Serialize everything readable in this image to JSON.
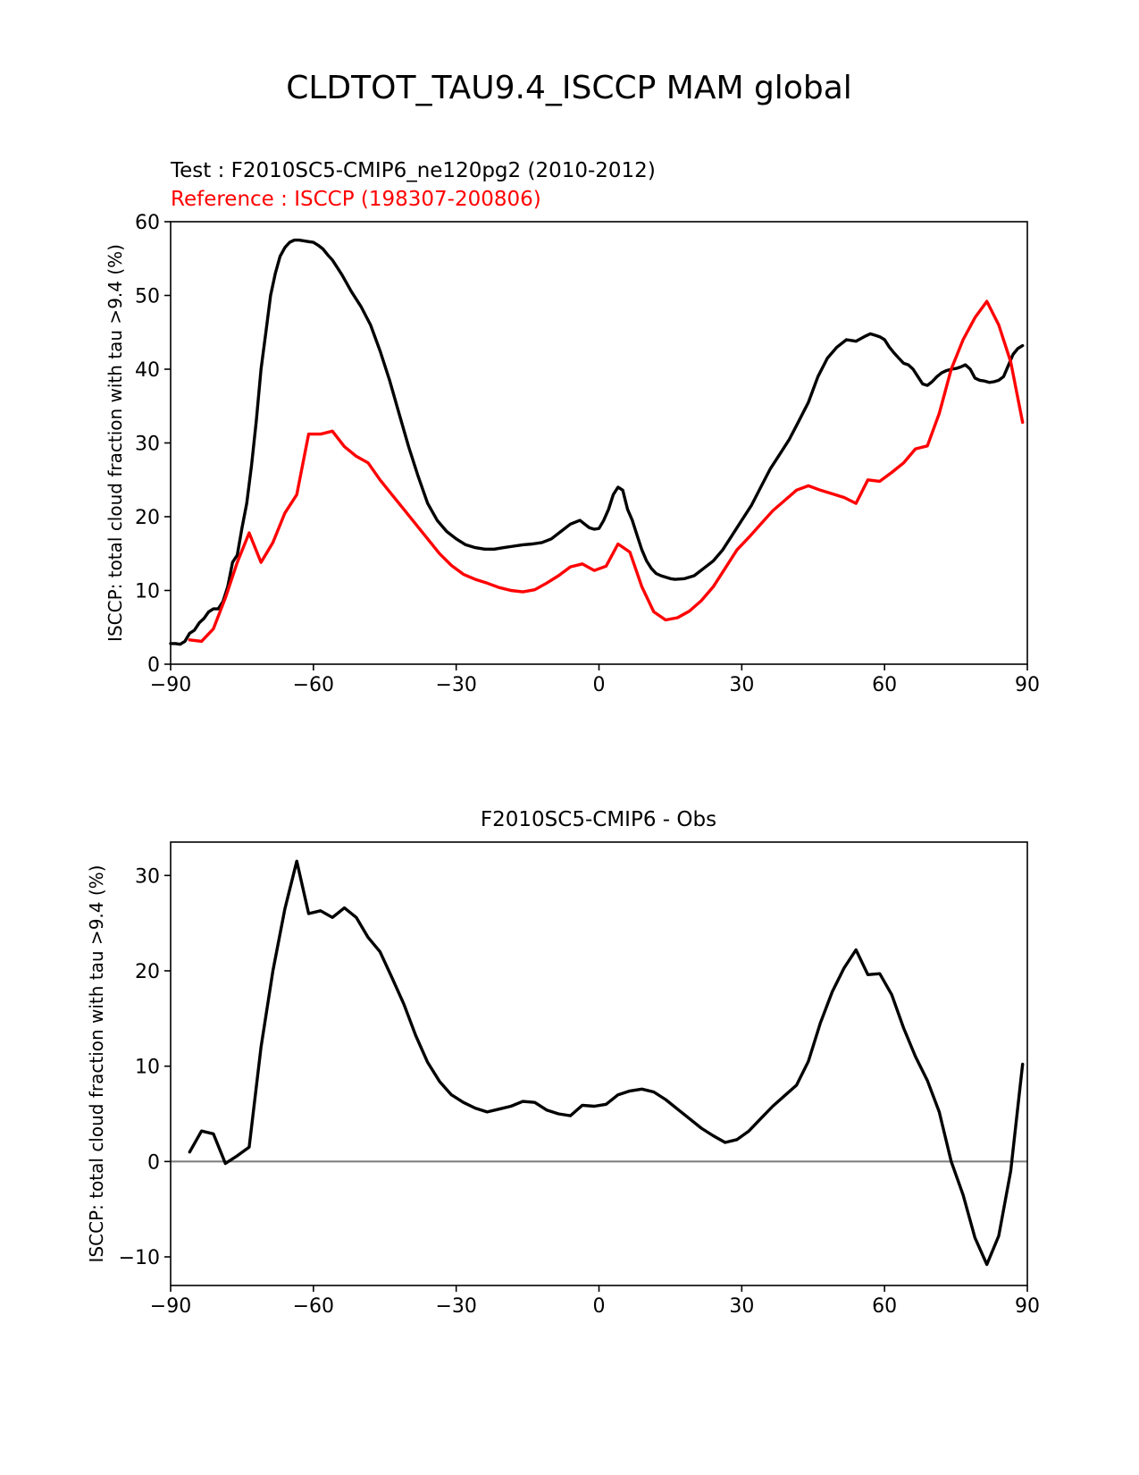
{
  "figure": {
    "suptitle": "CLDTOT_TAU9.4_ISCCP MAM global"
  },
  "colors": {
    "test": "#000000",
    "reference": "#ff0000",
    "zero_line": "#808080"
  },
  "chart_data": [
    {
      "type": "line",
      "test_label": "Test : F2010SC5-CMIP6_ne120pg2 (2010-2012)",
      "reference_label": "Reference : ISCCP (198307-200806)",
      "ylabel": "ISCCP: total cloud fraction with tau >9.4 (%)",
      "xlabel": "",
      "xlim": [
        -90,
        90
      ],
      "ylim": [
        0,
        60
      ],
      "xticks": [
        -90,
        -60,
        -30,
        0,
        30,
        60,
        90
      ],
      "xtick_labels": [
        "−90",
        "−60",
        "−30",
        "0",
        "30",
        "60",
        "90"
      ],
      "yticks": [
        0,
        10,
        20,
        30,
        40,
        50,
        60
      ],
      "ytick_labels": [
        "0",
        "10",
        "20",
        "30",
        "40",
        "50",
        "60"
      ],
      "series": [
        {
          "name": "Test",
          "color": "#000000",
          "x": [
            -90,
            -89,
            -88,
            -87,
            -86,
            -85,
            -84,
            -83,
            -82,
            -81,
            -80,
            -79,
            -78,
            -77,
            -76,
            -75,
            -74,
            -73,
            -72,
            -71,
            -70,
            -69,
            -68,
            -67,
            -66,
            -65,
            -64,
            -63,
            -62,
            -61,
            -60,
            -59,
            -58,
            -57,
            -56,
            -55,
            -54,
            -52,
            -50,
            -48,
            -46,
            -44,
            -42,
            -40,
            -38,
            -36,
            -34,
            -32,
            -30,
            -28,
            -26,
            -24,
            -22,
            -20,
            -18,
            -16,
            -14,
            -12,
            -10,
            -8,
            -6,
            -4,
            -3,
            -2,
            -1,
            0,
            1,
            2,
            3,
            4,
            5,
            6,
            7,
            8,
            9,
            10,
            11,
            12,
            13,
            14,
            15,
            16,
            18,
            20,
            22,
            24,
            26,
            28,
            30,
            32,
            34,
            36,
            38,
            40,
            42,
            44,
            46,
            48,
            50,
            52,
            54,
            56,
            57,
            58,
            59,
            60,
            61,
            62,
            63,
            64,
            65,
            66,
            67,
            68,
            69,
            70,
            71,
            72,
            73,
            74,
            75,
            76,
            77,
            78,
            79,
            80,
            81,
            82,
            83,
            84,
            85,
            86,
            87,
            88,
            89
          ],
          "values": [
            2.8,
            2.8,
            2.7,
            3.1,
            4.2,
            4.6,
            5.6,
            6.2,
            7.1,
            7.5,
            7.5,
            8.5,
            10.5,
            13.8,
            14.8,
            18.5,
            21.8,
            27.0,
            33.0,
            40.0,
            45.0,
            50.0,
            53.0,
            55.3,
            56.5,
            57.2,
            57.5,
            57.5,
            57.4,
            57.3,
            57.2,
            56.8,
            56.3,
            55.5,
            54.8,
            53.8,
            52.8,
            50.5,
            48.5,
            46.0,
            42.5,
            38.5,
            34.0,
            29.5,
            25.5,
            21.8,
            19.5,
            18.0,
            17.0,
            16.2,
            15.8,
            15.6,
            15.6,
            15.8,
            16.0,
            16.2,
            16.3,
            16.5,
            17.0,
            18.0,
            19.0,
            19.5,
            19.0,
            18.5,
            18.3,
            18.4,
            19.5,
            21.0,
            23.0,
            24.0,
            23.6,
            21.0,
            19.5,
            17.5,
            15.5,
            14.0,
            13.0,
            12.3,
            12.0,
            11.8,
            11.6,
            11.5,
            11.6,
            12.0,
            13.0,
            14.0,
            15.5,
            17.5,
            19.5,
            21.5,
            24.0,
            26.5,
            28.5,
            30.5,
            33.0,
            35.5,
            39.0,
            41.5,
            43.0,
            44.0,
            43.8,
            44.5,
            44.8,
            44.6,
            44.4,
            44.0,
            43.0,
            42.2,
            41.5,
            40.8,
            40.6,
            40.0,
            39.0,
            38.0,
            37.8,
            38.3,
            39.0,
            39.5,
            39.8,
            40.0,
            40.1,
            40.3,
            40.6,
            40.0,
            38.8,
            38.5,
            38.4,
            38.2,
            38.3,
            38.5,
            39.0,
            40.5,
            42.0,
            42.8,
            43.2
          ]
        },
        {
          "name": "Reference",
          "color": "#ff0000",
          "x": [
            -86,
            -83.5,
            -81,
            -78.5,
            -76,
            -73.5,
            -71,
            -68.5,
            -66,
            -63.5,
            -61,
            -58.5,
            -56,
            -53.5,
            -51,
            -48.5,
            -46,
            -43.5,
            -41,
            -38.5,
            -36,
            -33.5,
            -31,
            -28.5,
            -26,
            -23.5,
            -21,
            -18.5,
            -16,
            -13.5,
            -11,
            -8.5,
            -6,
            -3.5,
            -1,
            1.5,
            4,
            6.5,
            9,
            11.5,
            14,
            16.5,
            19,
            21.5,
            24,
            26.5,
            29,
            31.5,
            34,
            36.5,
            39,
            41.5,
            44,
            46.5,
            49,
            51.5,
            54,
            56.5,
            59,
            61.5,
            64,
            66.5,
            69,
            71.5,
            74,
            76.5,
            79,
            81.5,
            84,
            86.5,
            89
          ],
          "values": [
            3.3,
            3.1,
            4.8,
            9.0,
            13.8,
            17.8,
            13.8,
            16.5,
            20.5,
            23.0,
            31.2,
            31.2,
            31.6,
            29.5,
            28.2,
            27.3,
            25.0,
            23.0,
            21.0,
            19.0,
            17.0,
            15.0,
            13.4,
            12.2,
            11.5,
            11.0,
            10.4,
            10.0,
            9.8,
            10.1,
            11.0,
            12.0,
            13.2,
            13.6,
            12.7,
            13.3,
            16.3,
            15.2,
            10.5,
            7.1,
            6.0,
            6.3,
            7.2,
            8.6,
            10.5,
            13.0,
            15.5,
            17.2,
            19.0,
            20.8,
            22.2,
            23.6,
            24.2,
            23.6,
            23.1,
            22.6,
            21.8,
            25.0,
            24.8,
            26.0,
            27.3,
            29.2,
            29.6,
            34.0,
            40.0,
            44.0,
            47.0,
            49.2,
            46.0,
            41.0,
            32.8
          ]
        }
      ]
    },
    {
      "type": "line",
      "title": "F2010SC5-CMIP6 - Obs",
      "ylabel": "ISCCP: total cloud fraction with tau >9.4 (%)",
      "xlabel": "",
      "xlim": [
        -90,
        90
      ],
      "ylim": [
        -13,
        33.5
      ],
      "xticks": [
        -90,
        -60,
        -30,
        0,
        30,
        60,
        90
      ],
      "xtick_labels": [
        "−90",
        "−60",
        "−30",
        "0",
        "30",
        "60",
        "90"
      ],
      "yticks": [
        -10,
        0,
        10,
        20,
        30
      ],
      "ytick_labels": [
        "−10",
        "0",
        "10",
        "20",
        "30"
      ],
      "zero_line": 0,
      "series": [
        {
          "name": "F2010SC5-CMIP6 - Obs",
          "color": "#000000",
          "x": [
            -86,
            -83.5,
            -81,
            -78.5,
            -76,
            -73.5,
            -71,
            -68.5,
            -66,
            -63.5,
            -61,
            -58.5,
            -56,
            -53.5,
            -51,
            -48.5,
            -46,
            -43.5,
            -41,
            -38.5,
            -36,
            -33.5,
            -31,
            -28.5,
            -26,
            -23.5,
            -21,
            -18.5,
            -16,
            -13.5,
            -11,
            -8.5,
            -6,
            -3.5,
            -1,
            1.5,
            4,
            6.5,
            9,
            11.5,
            14,
            16.5,
            19,
            21.5,
            24,
            26.5,
            29,
            31.5,
            34,
            36.5,
            39,
            41.5,
            44,
            46.5,
            49,
            51.5,
            54,
            56.5,
            59,
            61.5,
            64,
            66.5,
            69,
            71.5,
            74,
            76.5,
            79,
            81.5,
            84,
            86.5,
            89
          ],
          "values": [
            1.0,
            3.2,
            2.9,
            -0.2,
            0.6,
            1.5,
            12.0,
            20.0,
            26.5,
            31.5,
            26.0,
            26.3,
            25.6,
            26.6,
            25.6,
            23.5,
            22.0,
            19.3,
            16.5,
            13.2,
            10.4,
            8.4,
            7.0,
            6.2,
            5.6,
            5.2,
            5.5,
            5.8,
            6.3,
            6.2,
            5.4,
            5.0,
            4.8,
            5.9,
            5.8,
            6.0,
            7.0,
            7.4,
            7.6,
            7.3,
            6.5,
            5.5,
            4.5,
            3.5,
            2.7,
            2.0,
            2.3,
            3.2,
            4.5,
            5.8,
            6.9,
            8.0,
            10.5,
            14.5,
            17.8,
            20.3,
            22.2,
            19.6,
            19.7,
            17.5,
            14.0,
            11.0,
            8.5,
            5.2,
            0.0,
            -3.5,
            -8.0,
            -10.8,
            -7.8,
            -1.0,
            10.2
          ]
        }
      ]
    }
  ]
}
